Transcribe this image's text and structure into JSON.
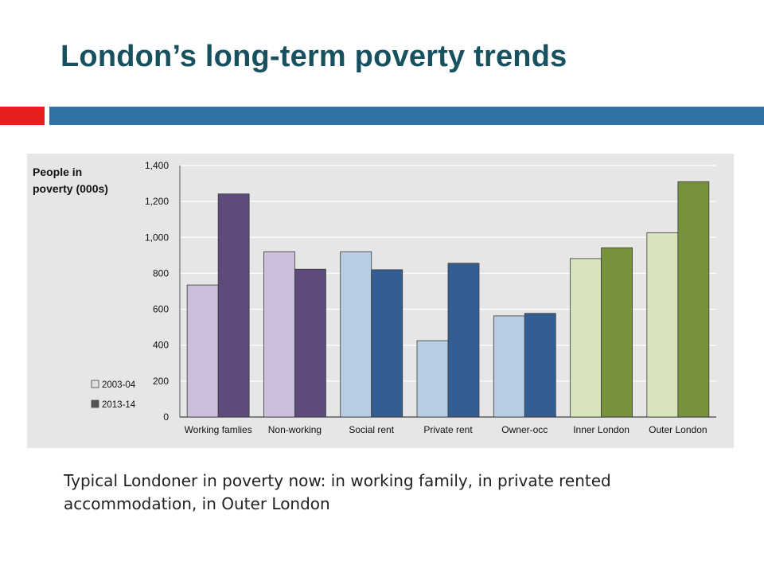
{
  "slide": {
    "title": "London’s long-term poverty trends",
    "caption": "Typical Londoner in poverty now: in working family, in private rented accommodation, in Outer London"
  },
  "chart_data": {
    "type": "bar",
    "ylabel": "People in poverty (000s)",
    "ylabel_lines": [
      "People in",
      "poverty (000s)"
    ],
    "categories": [
      "Working famlies",
      "Non-working",
      "Social rent",
      "Private rent",
      "Owner-occ",
      "Inner London",
      "Outer London"
    ],
    "series": [
      {
        "name": "2003-04",
        "values": [
          735,
          920,
          920,
          425,
          563,
          882,
          1025
        ],
        "colors": [
          "#cbbfdc",
          "#cbbfdc",
          "#b8cde4",
          "#b8cde4",
          "#b8cde4",
          "#d8e4bc",
          "#d8e4bc"
        ]
      },
      {
        "name": "2013-14",
        "values": [
          1242,
          823,
          820,
          856,
          577,
          942,
          1310
        ],
        "colors": [
          "#5e4a7b",
          "#5e4a7b",
          "#335e91",
          "#335e91",
          "#335e91",
          "#76923c",
          "#76923c"
        ]
      }
    ],
    "ylim": [
      0,
      1400
    ],
    "yticks": [
      0,
      200,
      400,
      600,
      800,
      1000,
      1200,
      1400
    ],
    "ytick_labels": [
      "0",
      "200",
      "400",
      "600",
      "800",
      "1,000",
      "1,200",
      "1,400"
    ],
    "grid": true,
    "legend_position": "lower-left",
    "legend_swatch_colors": [
      "#e0e0e0",
      "#555555"
    ]
  }
}
